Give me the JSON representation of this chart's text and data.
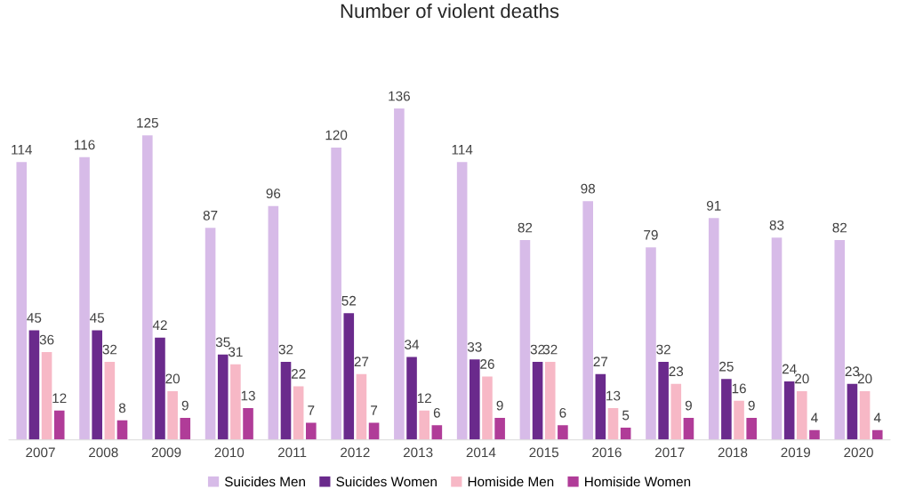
{
  "chart_data": {
    "type": "bar",
    "title": "Number of violent deaths",
    "categories": [
      "2007",
      "2008",
      "2009",
      "2010",
      "2011",
      "2012",
      "2013",
      "2014",
      "2015",
      "2016",
      "2017",
      "2018",
      "2019",
      "2020"
    ],
    "series": [
      {
        "name": "Suicides Men",
        "color": "#d7bbe8",
        "values": [
          114,
          116,
          125,
          87,
          96,
          120,
          136,
          114,
          82,
          98,
          79,
          91,
          83,
          82
        ]
      },
      {
        "name": "Suicides Women",
        "color": "#6a2a8c",
        "values": [
          45,
          45,
          42,
          35,
          32,
          52,
          34,
          33,
          32,
          27,
          32,
          25,
          24,
          23
        ]
      },
      {
        "name": "Homiside Men",
        "color": "#f7b8c6",
        "values": [
          36,
          32,
          20,
          31,
          22,
          27,
          12,
          26,
          32,
          13,
          23,
          16,
          20,
          20
        ]
      },
      {
        "name": "Homiside Women",
        "color": "#b03c98",
        "values": [
          12,
          8,
          9,
          13,
          7,
          7,
          6,
          9,
          6,
          5,
          9,
          9,
          4,
          4
        ]
      }
    ],
    "data_labels": true,
    "grid": false,
    "legend": "bottom"
  }
}
